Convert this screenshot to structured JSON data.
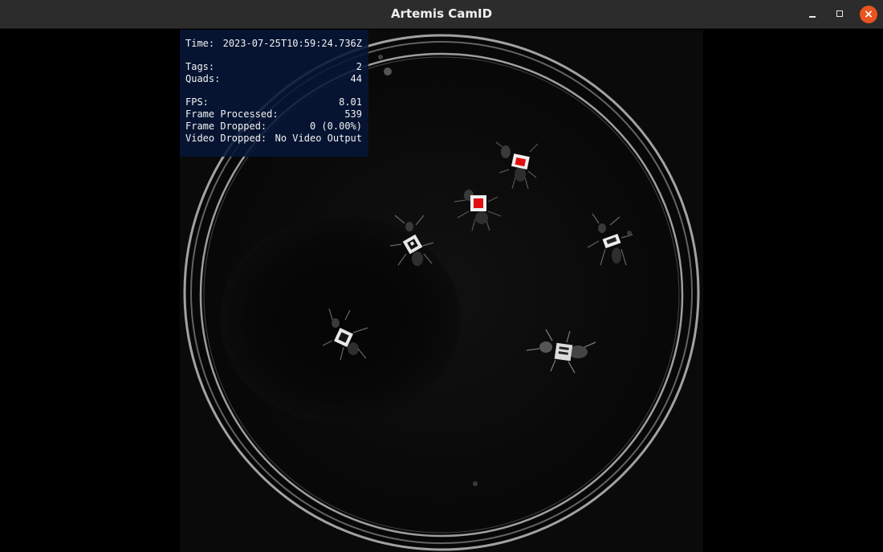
{
  "window": {
    "title": "Artemis CamID",
    "controls": {
      "minimize": "minimize-icon",
      "maximize": "maximize-icon",
      "close": "×"
    }
  },
  "stats": {
    "time_label": "Time:",
    "time_value": "2023-07-25T10:59:24.736Z",
    "tags_label": "Tags:",
    "tags_value": "2",
    "quads_label": "Quads:",
    "quads_value": "44",
    "fps_label": "FPS:",
    "fps_value": "8.01",
    "frame_processed_label": "Frame Processed:",
    "frame_processed_value": "539",
    "frame_dropped_label": "Frame Dropped:",
    "frame_dropped_value": "0 (0.00%)",
    "video_dropped_label": "Video Dropped:",
    "video_dropped_value": "No Video Output"
  },
  "colors": {
    "detected_tag_marker": "#e01010",
    "overlay_background": "#061638",
    "close_button": "#e95420"
  }
}
